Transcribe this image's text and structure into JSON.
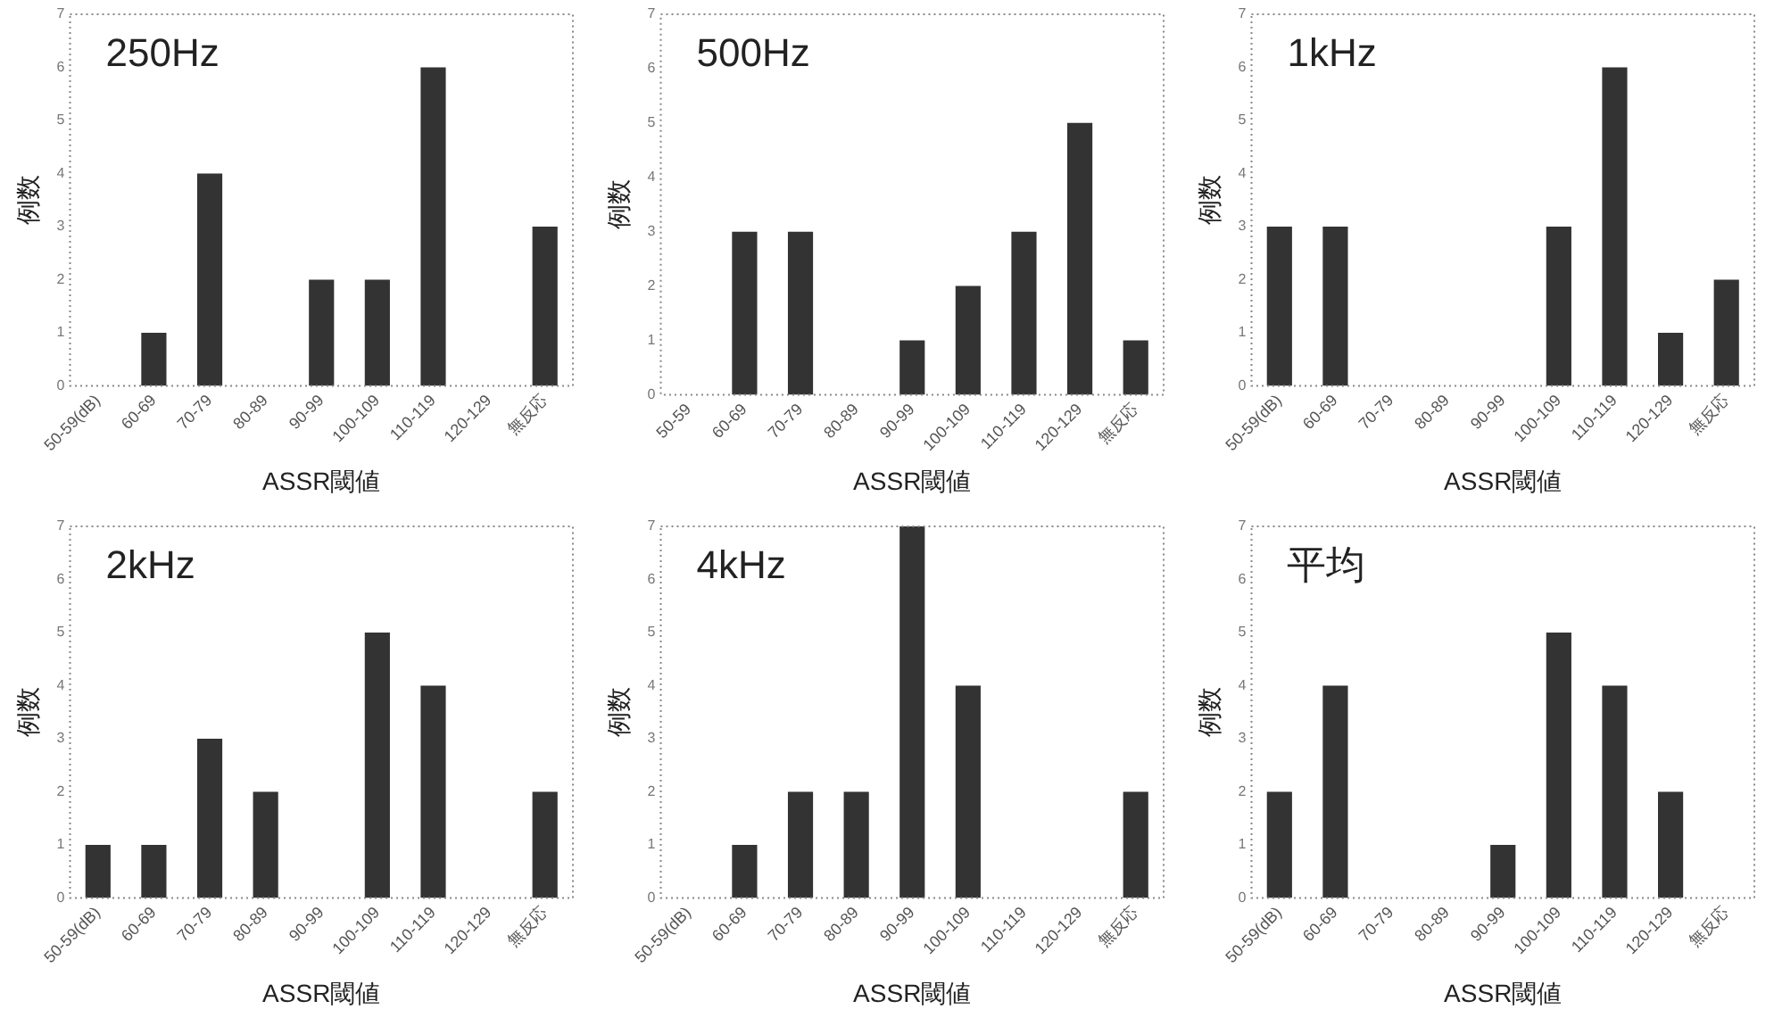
{
  "chart_data": [
    {
      "type": "bar",
      "title": "250Hz",
      "xlabel": "ASSR閾値",
      "ylabel": "例数",
      "categories": [
        "50-59(dB)",
        "60-69",
        "70-79",
        "80-89",
        "90-99",
        "100-109",
        "110-119",
        "120-129",
        "無反応"
      ],
      "values": [
        0,
        1,
        4,
        0,
        2,
        2,
        6,
        0,
        3
      ],
      "color": "#333333",
      "ylim": [
        0,
        7
      ],
      "yticks": [
        0,
        1,
        2,
        3,
        4,
        5,
        6,
        7
      ],
      "grid": false,
      "legend": false
    },
    {
      "type": "bar",
      "title": "500Hz",
      "xlabel": "ASSR閾値",
      "ylabel": "例数",
      "categories": [
        "50-59",
        "60-69",
        "70-79",
        "80-89",
        "90-99",
        "100-109",
        "110-119",
        "120-129",
        "無反応"
      ],
      "values": [
        0,
        3,
        3,
        0,
        1,
        2,
        3,
        5,
        1
      ],
      "color": "#333333",
      "ylim": [
        0,
        7
      ],
      "yticks": [
        0,
        1,
        2,
        3,
        4,
        5,
        6,
        7
      ],
      "grid": false,
      "legend": false
    },
    {
      "type": "bar",
      "title": "1kHz",
      "xlabel": "ASSR閾値",
      "ylabel": "例数",
      "categories": [
        "50-59(dB)",
        "60-69",
        "70-79",
        "80-89",
        "90-99",
        "100-109",
        "110-119",
        "120-129",
        "無反応"
      ],
      "values": [
        3,
        3,
        0,
        0,
        0,
        3,
        6,
        1,
        2
      ],
      "color": "#333333",
      "ylim": [
        0,
        7
      ],
      "yticks": [
        0,
        1,
        2,
        3,
        4,
        5,
        6,
        7
      ],
      "grid": false,
      "legend": false
    },
    {
      "type": "bar",
      "title": "2kHz",
      "xlabel": "ASSR閾値",
      "ylabel": "例数",
      "categories": [
        "50-59(dB)",
        "60-69",
        "70-79",
        "80-89",
        "90-99",
        "100-109",
        "110-119",
        "120-129",
        "無反応"
      ],
      "values": [
        1,
        1,
        3,
        2,
        0,
        5,
        4,
        0,
        2
      ],
      "color": "#333333",
      "ylim": [
        0,
        7
      ],
      "yticks": [
        0,
        1,
        2,
        3,
        4,
        5,
        6,
        7
      ],
      "grid": false,
      "legend": false
    },
    {
      "type": "bar",
      "title": "4kHz",
      "xlabel": "ASSR閾値",
      "ylabel": "例数",
      "categories": [
        "50-59(dB)",
        "60-69",
        "70-79",
        "80-89",
        "90-99",
        "100-109",
        "110-119",
        "120-129",
        "無反応"
      ],
      "values": [
        0,
        1,
        2,
        2,
        7,
        4,
        0,
        0,
        2
      ],
      "color": "#333333",
      "ylim": [
        0,
        7
      ],
      "yticks": [
        0,
        1,
        2,
        3,
        4,
        5,
        6,
        7
      ],
      "grid": false,
      "legend": false
    },
    {
      "type": "bar",
      "title": "平均",
      "xlabel": "ASSR閾値",
      "ylabel": "例数",
      "categories": [
        "50-59(dB)",
        "60-69",
        "70-79",
        "80-89",
        "90-99",
        "100-109",
        "110-119",
        "120-129",
        "無反応"
      ],
      "values": [
        2,
        4,
        0,
        0,
        1,
        5,
        4,
        2,
        0
      ],
      "color": "#333333",
      "ylim": [
        0,
        7
      ],
      "yticks": [
        0,
        1,
        2,
        3,
        4,
        5,
        6,
        7
      ],
      "grid": false,
      "legend": false
    }
  ]
}
